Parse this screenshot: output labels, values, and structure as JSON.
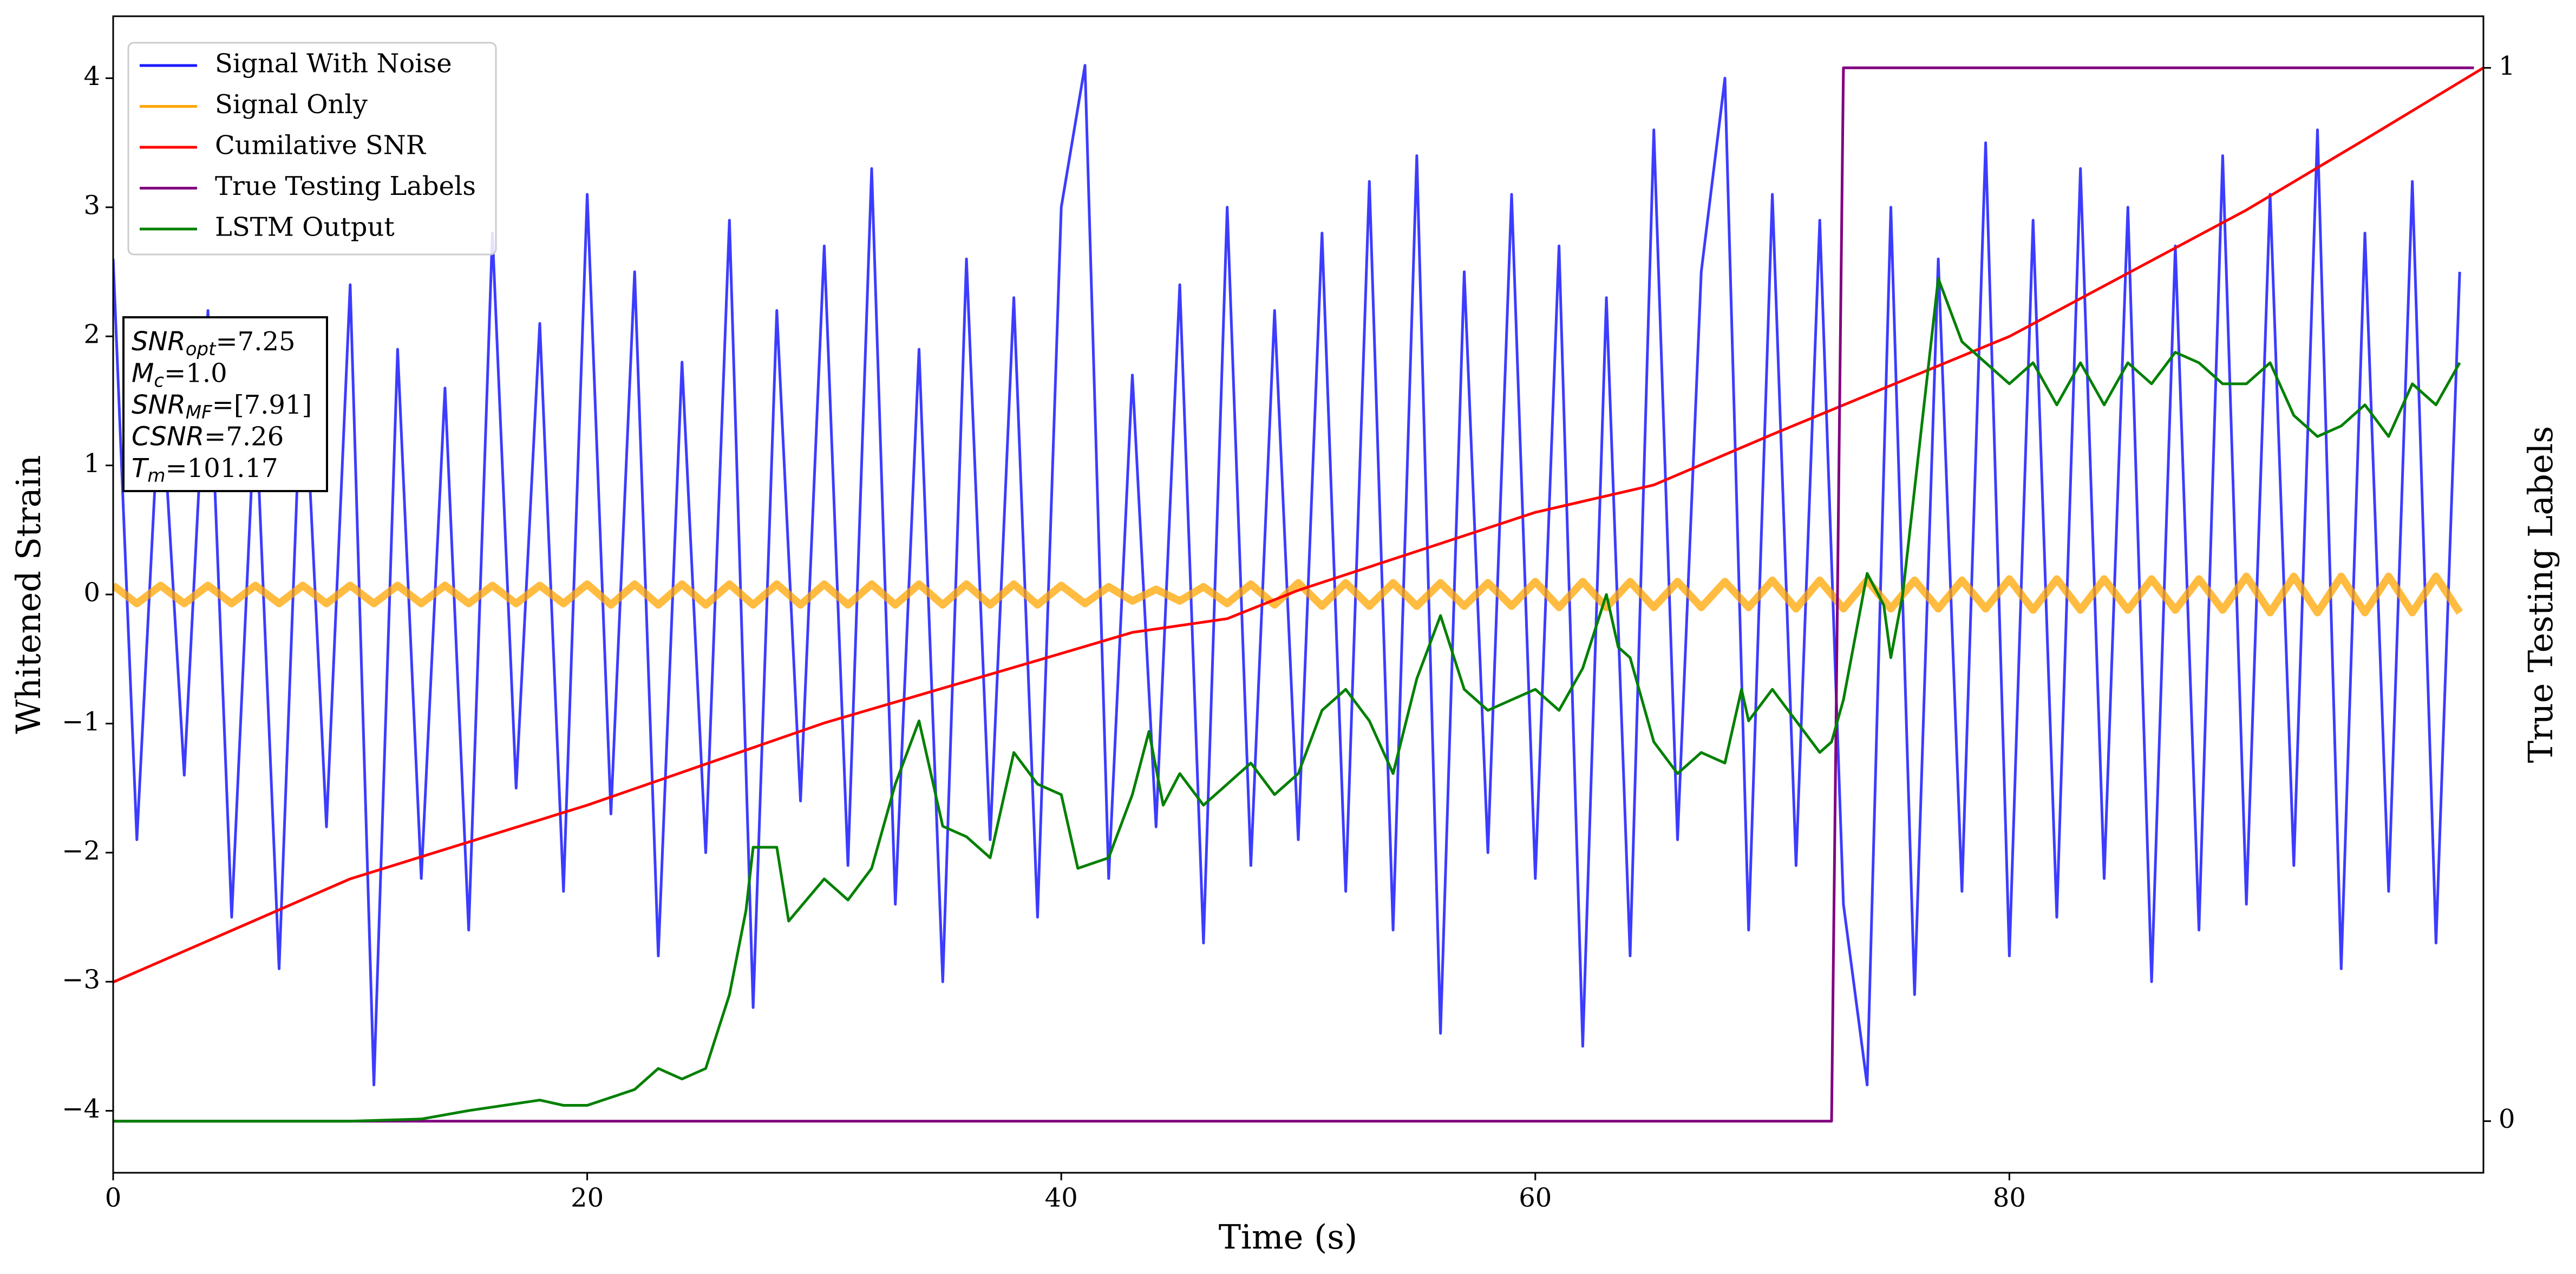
{
  "chart_data": {
    "type": "line",
    "xlabel": "Time (s)",
    "ylabel": "Whitened Strain",
    "y2label": "True Testing Labels",
    "xlim": [
      0,
      100
    ],
    "xticks": [
      0,
      20,
      40,
      60,
      80
    ],
    "ylim": [
      -4.48,
      4.48
    ],
    "yticks": [
      {
        "value": -4,
        "label": "−4"
      },
      {
        "value": -3,
        "label": "−3"
      },
      {
        "value": -2,
        "label": "−2"
      },
      {
        "value": -1,
        "label": "−1"
      },
      0,
      1,
      2,
      3,
      4
    ],
    "y2lim": [
      -0.049,
      1.049
    ],
    "y2ticks": [
      0,
      1
    ],
    "legend": "upper left",
    "x": [
      0,
      1,
      2,
      3,
      4,
      5,
      6,
      7,
      8,
      9,
      10,
      11,
      12,
      13,
      14,
      15,
      16,
      17,
      18,
      19,
      20,
      21,
      22,
      23,
      24,
      25,
      26,
      27,
      28,
      29,
      30,
      31,
      32,
      33,
      34,
      35,
      36,
      37,
      38,
      39,
      40,
      41,
      42,
      43,
      44,
      45,
      46,
      47,
      48,
      49,
      50,
      51,
      52,
      53,
      54,
      55,
      56,
      57,
      58,
      59,
      60,
      61,
      62,
      63,
      64,
      65,
      66,
      67,
      68,
      69,
      70,
      71,
      72,
      73,
      74,
      75,
      76,
      77,
      78,
      79,
      80,
      81,
      82,
      83,
      84,
      85,
      86,
      87,
      88,
      89,
      90,
      91,
      92,
      93,
      94,
      95,
      96,
      97,
      98,
      99
    ],
    "series": [
      {
        "name": "Signal With Noise",
        "color": "#1a1aff",
        "values": [
          2.6,
          -1.9,
          1.7,
          -1.4,
          2.2,
          -2.5,
          1.5,
          -2.9,
          2.0,
          -1.8,
          2.4,
          -3.8,
          1.9,
          -2.2,
          1.6,
          -2.6,
          2.8,
          -1.5,
          2.1,
          -2.3,
          3.1,
          -1.7,
          2.5,
          -2.8,
          1.8,
          -2.0,
          2.9,
          -3.2,
          2.2,
          -1.6,
          2.7,
          -2.1,
          3.3,
          -2.4,
          1.9,
          -3.0,
          2.6,
          -1.9,
          2.3,
          -2.5,
          3.0,
          4.1,
          -2.2,
          1.7,
          -1.8,
          2.4,
          -2.7,
          3.0,
          -2.1,
          2.2,
          -1.9,
          2.8,
          -2.3,
          3.2,
          -2.6,
          3.4,
          -3.4,
          2.5,
          -2.0,
          3.1,
          -2.2,
          2.7,
          -3.5,
          2.3,
          -2.8,
          3.6,
          -1.9,
          2.5,
          4.0,
          -2.6,
          3.1,
          -2.1,
          2.9,
          -2.4,
          -3.8,
          3.0,
          -3.1,
          2.6,
          -2.3,
          3.5,
          -2.8,
          2.9,
          -2.5,
          3.3,
          -2.2,
          3.0,
          -3.0,
          2.7,
          -2.6,
          3.4,
          -2.4,
          3.1,
          -2.1,
          3.6,
          -2.9,
          2.8,
          -2.3,
          3.2,
          -2.7,
          2.5
        ]
      },
      {
        "name": "Signal Only",
        "color": "#ffa500",
        "values": [
          0.07,
          -0.07,
          0.07,
          -0.07,
          0.07,
          -0.07,
          0.07,
          -0.07,
          0.07,
          -0.07,
          0.07,
          -0.07,
          0.07,
          -0.07,
          0.07,
          -0.07,
          0.07,
          -0.07,
          0.07,
          -0.07,
          0.08,
          -0.08,
          0.08,
          -0.08,
          0.08,
          -0.08,
          0.08,
          -0.08,
          0.08,
          -0.08,
          0.08,
          -0.08,
          0.08,
          -0.08,
          0.08,
          -0.08,
          0.08,
          -0.08,
          0.08,
          -0.08,
          0.07,
          -0.07,
          0.06,
          -0.05,
          0.04,
          -0.05,
          0.06,
          -0.07,
          0.08,
          -0.08,
          0.09,
          -0.09,
          0.09,
          -0.09,
          0.09,
          -0.09,
          0.09,
          -0.09,
          0.09,
          -0.09,
          0.1,
          -0.1,
          0.1,
          -0.1,
          0.1,
          -0.1,
          0.1,
          -0.1,
          0.1,
          -0.1,
          0.11,
          -0.11,
          0.11,
          -0.11,
          0.11,
          -0.11,
          0.11,
          -0.11,
          0.11,
          -0.11,
          0.12,
          -0.12,
          0.12,
          -0.12,
          0.12,
          -0.12,
          0.12,
          -0.12,
          0.12,
          -0.12,
          0.14,
          -0.14,
          0.14,
          -0.14,
          0.14,
          -0.14,
          0.14,
          -0.14,
          0.14,
          -0.14
        ]
      },
      {
        "name": "Cumilative SNR",
        "color": "#ff0000",
        "axis": "y2",
        "x": [
          0,
          10,
          20,
          30,
          40,
          43,
          47,
          50,
          60,
          65,
          70,
          80,
          90,
          95,
          100
        ],
        "values": [
          0.132,
          0.23,
          0.3,
          0.378,
          0.444,
          0.464,
          0.477,
          0.504,
          0.578,
          0.604,
          0.652,
          0.745,
          0.865,
          0.932,
          1.0
        ]
      },
      {
        "name": "True Testing Labels",
        "color": "#800080",
        "axis": "y2",
        "x": [
          0,
          72.5,
          73,
          99.6
        ],
        "values": [
          0,
          0,
          1,
          1
        ]
      },
      {
        "name": "LSTM Output",
        "color": "#008000",
        "axis": "y2",
        "x": [
          0,
          10,
          13,
          15,
          18,
          19,
          20,
          22,
          23,
          24,
          25,
          26,
          26.7,
          27,
          28,
          28.5,
          30,
          31,
          32,
          33,
          34,
          35,
          36,
          37,
          38,
          39,
          40,
          40.7,
          42,
          43,
          43.7,
          44.3,
          45,
          46,
          47,
          48,
          49,
          50,
          51,
          52,
          53,
          54,
          55,
          56,
          57,
          58,
          59,
          60,
          61,
          62,
          63,
          63.5,
          64,
          65,
          66,
          67,
          68,
          68.7,
          69,
          70,
          71,
          72,
          72.5,
          73,
          74,
          74.7,
          75,
          75.5,
          76,
          77,
          78,
          79,
          80,
          81,
          82,
          83,
          84,
          85,
          86,
          87,
          88,
          89,
          90,
          91,
          92,
          93,
          94,
          95,
          96,
          97,
          98,
          99
        ],
        "values": [
          0,
          0,
          0.002,
          0.01,
          0.02,
          0.015,
          0.015,
          0.03,
          0.05,
          0.04,
          0.05,
          0.12,
          0.2,
          0.26,
          0.26,
          0.19,
          0.23,
          0.21,
          0.24,
          0.32,
          0.38,
          0.28,
          0.27,
          0.25,
          0.35,
          0.32,
          0.31,
          0.24,
          0.25,
          0.31,
          0.37,
          0.3,
          0.33,
          0.3,
          0.32,
          0.34,
          0.31,
          0.33,
          0.39,
          0.41,
          0.38,
          0.33,
          0.42,
          0.48,
          0.41,
          0.39,
          0.4,
          0.41,
          0.39,
          0.43,
          0.5,
          0.45,
          0.44,
          0.36,
          0.33,
          0.35,
          0.34,
          0.41,
          0.38,
          0.41,
          0.38,
          0.35,
          0.36,
          0.4,
          0.52,
          0.49,
          0.44,
          0.5,
          0.6,
          0.8,
          0.74,
          0.72,
          0.7,
          0.72,
          0.68,
          0.72,
          0.68,
          0.72,
          0.7,
          0.73,
          0.72,
          0.7,
          0.7,
          0.72,
          0.67,
          0.65,
          0.66,
          0.68,
          0.65,
          0.7,
          0.68,
          0.72
        ]
      }
    ],
    "annotation": [
      {
        "name": "SNR",
        "sub": "opt",
        "text": "=7.25"
      },
      {
        "name": "M",
        "sub": "c",
        "text": "=1.0"
      },
      {
        "name": "SNR",
        "sub": "MF",
        "text": "=[7.91]"
      },
      {
        "name": "CSNR",
        "text": "=7.26"
      },
      {
        "name": "T",
        "sub": "m",
        "text": "=101.17"
      }
    ]
  }
}
